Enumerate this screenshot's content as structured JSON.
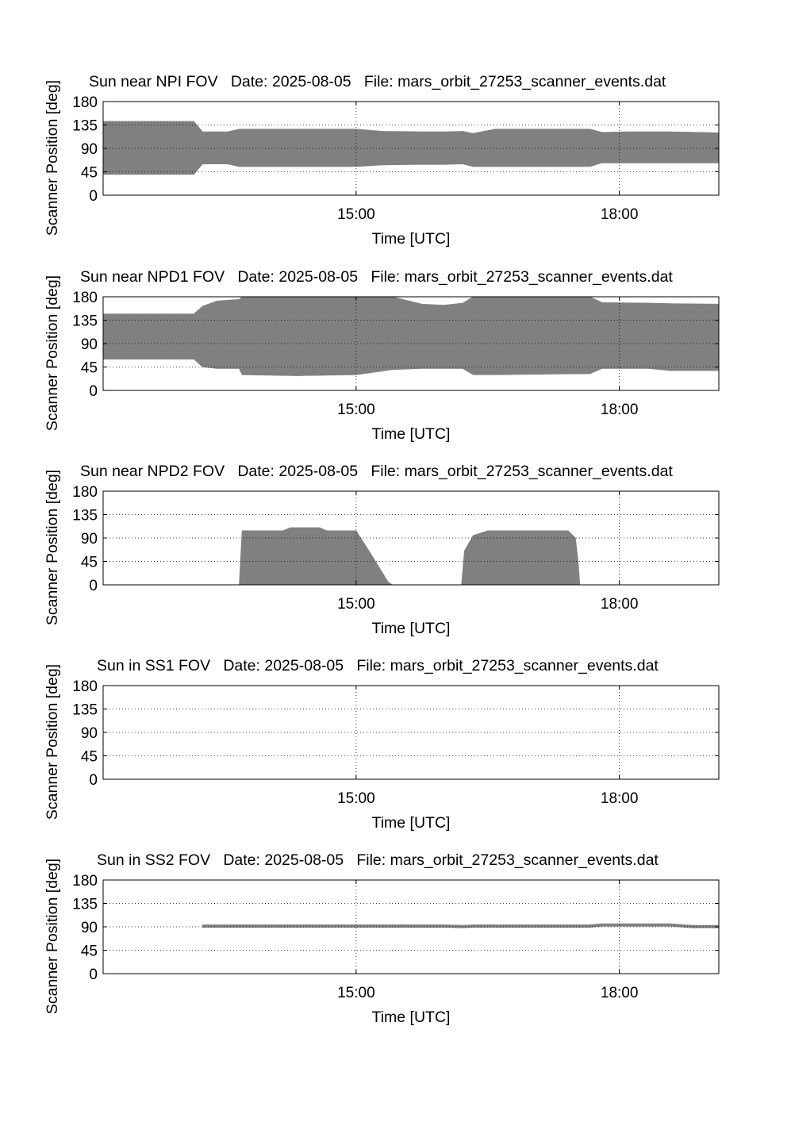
{
  "chart_data": [
    {
      "type": "area",
      "title": "Sun near NPI FOV   Date: 2025-08-05   File: mars_orbit_27253_scanner_events.dat",
      "xlabel": "Time [UTC]",
      "ylabel": "Scanner Position [deg]",
      "xlim": [
        "12:07",
        "19:08"
      ],
      "ylim": [
        0,
        180
      ],
      "y_ticks": [
        0,
        45,
        90,
        135,
        180
      ],
      "x_ticks": [
        "15:00",
        "18:00"
      ],
      "grid": true,
      "fill_color": "#808080",
      "x": [
        "12:07",
        "13:09",
        "13:15",
        "13:32",
        "13:40",
        "15:00",
        "15:18",
        "15:45",
        "16:00",
        "16:13",
        "16:20",
        "16:35",
        "17:40",
        "17:48",
        "18:05",
        "18:35",
        "19:08"
      ],
      "upper": [
        142,
        142,
        122,
        122,
        127,
        127,
        123,
        122,
        122,
        123,
        119,
        127,
        127,
        121,
        122,
        122,
        120
      ],
      "lower": [
        40,
        40,
        60,
        60,
        55,
        55,
        58,
        59,
        59,
        60,
        55,
        55,
        55,
        62,
        62,
        62,
        62
      ]
    },
    {
      "type": "area",
      "title": "Sun near NPD1 FOV   Date: 2025-08-05   File: mars_orbit_27253_scanner_events.dat",
      "xlabel": "Time [UTC]",
      "ylabel": "Scanner Position [deg]",
      "xlim": [
        "12:07",
        "19:08"
      ],
      "ylim": [
        0,
        180
      ],
      "y_ticks": [
        0,
        45,
        90,
        135,
        180
      ],
      "x_ticks": [
        "15:00",
        "18:00"
      ],
      "grid": true,
      "fill_color": "#808080",
      "x": [
        "12:07",
        "13:09",
        "13:15",
        "13:25",
        "13:40",
        "13:42",
        "14:20",
        "15:00",
        "15:25",
        "15:45",
        "16:00",
        "16:13",
        "16:20",
        "16:35",
        "17:40",
        "17:48",
        "18:20",
        "18:35",
        "19:08"
      ],
      "upper": [
        147,
        147,
        162,
        172,
        175,
        180,
        180,
        180,
        180,
        166,
        164,
        168,
        180,
        180,
        180,
        169,
        168,
        167,
        166
      ],
      "lower": [
        60,
        60,
        45,
        42,
        42,
        30,
        28,
        30,
        40,
        42,
        42,
        42,
        30,
        30,
        32,
        42,
        42,
        38,
        38
      ]
    },
    {
      "type": "area",
      "title": "Sun near NPD2 FOV   Date: 2025-08-05   File: mars_orbit_27253_scanner_events.dat",
      "xlabel": "Time [UTC]",
      "ylabel": "Scanner Position [deg]",
      "xlim": [
        "12:07",
        "19:08"
      ],
      "ylim": [
        0,
        180
      ],
      "y_ticks": [
        0,
        45,
        90,
        135,
        180
      ],
      "x_ticks": [
        "15:00",
        "18:00"
      ],
      "grid": true,
      "fill_color": "#808080",
      "x": [
        "12:07",
        "13:40",
        "13:42",
        "14:10",
        "14:15",
        "14:35",
        "14:40",
        "15:00",
        "15:10",
        "15:22",
        "15:25",
        "16:12",
        "16:14",
        "16:20",
        "16:30",
        "17:25",
        "17:30",
        "17:32",
        "17:33",
        "19:08"
      ],
      "upper": [
        0,
        0,
        104,
        104,
        110,
        110,
        104,
        104,
        60,
        5,
        0,
        0,
        65,
        95,
        104,
        104,
        90,
        40,
        0,
        0
      ],
      "lower": [
        0,
        0,
        0,
        0,
        0,
        0,
        0,
        0,
        0,
        0,
        0,
        0,
        0,
        0,
        0,
        0,
        0,
        0,
        0,
        0
      ]
    },
    {
      "type": "area",
      "title": "Sun in SS1 FOV   Date: 2025-08-05   File: mars_orbit_27253_scanner_events.dat",
      "xlabel": "Time [UTC]",
      "ylabel": "Scanner Position [deg]",
      "xlim": [
        "12:07",
        "19:08"
      ],
      "ylim": [
        0,
        180
      ],
      "y_ticks": [
        0,
        45,
        90,
        135,
        180
      ],
      "x_ticks": [
        "15:00",
        "18:00"
      ],
      "grid": true,
      "fill_color": "#808080",
      "x": [],
      "upper": [],
      "lower": []
    },
    {
      "type": "area",
      "title": "Sun in SS2 FOV   Date: 2025-08-05   File: mars_orbit_27253_scanner_events.dat",
      "xlabel": "Time [UTC]",
      "ylabel": "Scanner Position [deg]",
      "xlim": [
        "12:07",
        "19:08"
      ],
      "ylim": [
        0,
        180
      ],
      "y_ticks": [
        0,
        45,
        90,
        135,
        180
      ],
      "x_ticks": [
        "15:00",
        "18:00"
      ],
      "grid": true,
      "fill_color": "#808080",
      "x": [
        "13:15",
        "15:00",
        "16:00",
        "16:13",
        "16:20",
        "17:40",
        "17:48",
        "18:35",
        "18:50",
        "19:08"
      ],
      "upper": [
        94,
        94,
        94,
        93,
        94,
        94,
        96,
        96,
        93,
        93
      ],
      "lower": [
        89,
        89,
        89,
        88,
        89,
        89,
        91,
        91,
        88,
        88
      ]
    }
  ]
}
